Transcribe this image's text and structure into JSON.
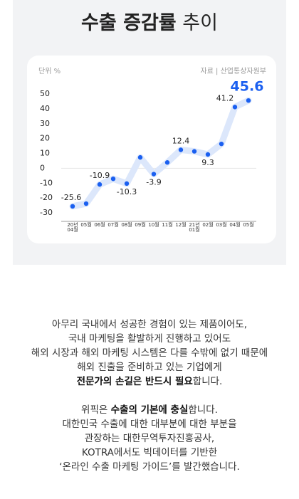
{
  "header": {
    "title_bold": "수출 증감률",
    "title_regular": "추이"
  },
  "chart_data": {
    "type": "line",
    "unit_label": "단위 %",
    "source": "자료 | 산업통상자원부",
    "categories": [
      "20년 04월",
      "05월",
      "06월",
      "07월",
      "08월",
      "09월",
      "10월",
      "11월",
      "12월",
      "21년 01월",
      "02월",
      "03월",
      "04월",
      "05월"
    ],
    "values": [
      -25.6,
      -23.8,
      -10.9,
      -7.1,
      -10.3,
      7.3,
      -3.9,
      3.9,
      12.4,
      11.4,
      9.3,
      16.4,
      41.2,
      45.6
    ],
    "value_labels": [
      "-25.6",
      null,
      "-10.9",
      null,
      "-10.3",
      null,
      "-3.9",
      null,
      "12.4",
      null,
      "9.3",
      null,
      "41.2",
      "45.6"
    ],
    "line_color": "#dce7fb",
    "point_color": "#1a5ff0",
    "ylim": [
      -30,
      50
    ],
    "yticks": [
      -30,
      -20,
      -10,
      0,
      10,
      20,
      30,
      40,
      50
    ]
  },
  "body": {
    "paragraphs": [
      [
        [
          {
            "text": "아무리 국내에서 성공한 경험이 있는 제품이어도,"
          }
        ],
        [
          {
            "text": "국내 마케팅을 활발하게 진행하고 있어도"
          }
        ],
        [
          {
            "text": "해외 시장과 해외 마케팅 시스템은 다를 수밖에 없기 때문에"
          }
        ],
        [
          {
            "text": "해외 진출을 준비하고 있는 기업에게"
          }
        ],
        [
          {
            "text": "전문가의 손길은 반드시 필요",
            "bold": true
          },
          {
            "text": "합니다."
          }
        ]
      ],
      [
        [
          {
            "text": "위픽은 "
          },
          {
            "text": "수출의 기본에 충실",
            "bold": true
          },
          {
            "text": "합니다."
          }
        ],
        [
          {
            "text": "대한민국 수출에 대한 대부분에 대한 부분을"
          }
        ],
        [
          {
            "text": "관장하는 대한무역투자진흥공사,"
          }
        ],
        [
          {
            "text": "KOTRA에서도 빅데이터를 기반한"
          }
        ],
        [
          {
            "text": "‘온라인 수출 마케팅 가이드’를 발간했습니다."
          }
        ]
      ]
    ]
  }
}
